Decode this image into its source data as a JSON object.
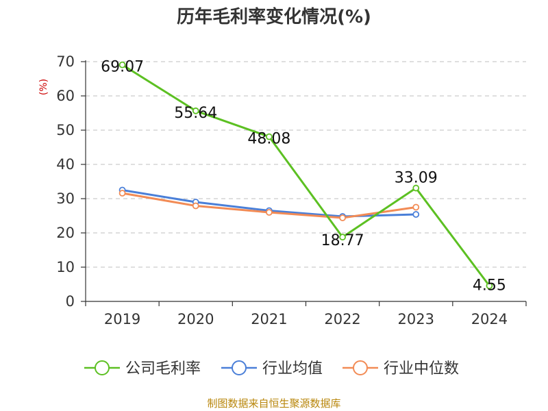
{
  "title": "历年毛利率变化情况(%)",
  "source": "制图数据来自恒生聚源数据库",
  "colors": {
    "company": "#5cc022",
    "avg": "#4a7fd8",
    "median": "#f28b55",
    "grid": "#cccccc",
    "axis": "#333333"
  },
  "chart_data": {
    "type": "line",
    "title": "历年毛利率变化情况(%)",
    "ylabel": "(%)",
    "xlabel": "",
    "categories": [
      "2019",
      "2020",
      "2021",
      "2022",
      "2023",
      "2024"
    ],
    "ylim": [
      0,
      70
    ],
    "yticks": [
      0,
      10,
      20,
      30,
      40,
      50,
      60,
      70
    ],
    "grid": true,
    "legend_position": "bottom",
    "series": [
      {
        "name": "公司毛利率",
        "values": [
          69.07,
          55.64,
          48.08,
          18.77,
          33.09,
          4.55
        ],
        "labels": [
          "69.07",
          "55.64",
          "48.08",
          "18.77",
          "33.09",
          "4.55"
        ]
      },
      {
        "name": "行业均值",
        "values": [
          32.5,
          29.0,
          26.5,
          24.8,
          25.4,
          null
        ]
      },
      {
        "name": "行业中位数",
        "values": [
          31.6,
          27.9,
          26.0,
          24.4,
          27.5,
          null
        ]
      }
    ]
  }
}
